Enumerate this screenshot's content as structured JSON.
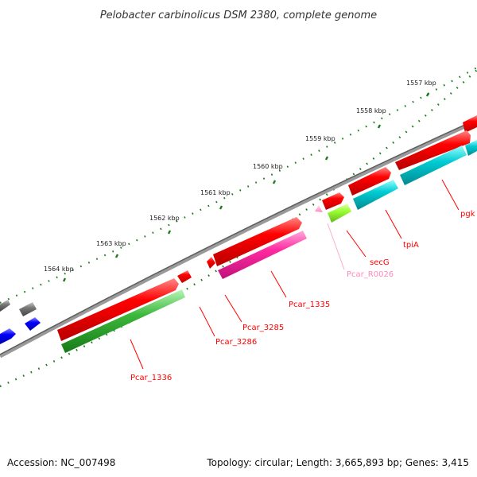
{
  "title": "Pelobacter carbinolicus DSM 2380, complete genome",
  "ticks": [
    {
      "label": "1557 kbp"
    },
    {
      "label": "1558 kbp"
    },
    {
      "label": "1559 kbp"
    },
    {
      "label": "1560 kbp"
    },
    {
      "label": "1561 kbp"
    },
    {
      "label": "1562 kbp"
    },
    {
      "label": "1563 kbp"
    },
    {
      "label": "1564 kbp"
    }
  ],
  "genes": [
    {
      "label": "pgk",
      "color": "#ff0000"
    },
    {
      "label": "tpiA",
      "color": "#ff0000"
    },
    {
      "label": "secG",
      "color": "#ff0000"
    },
    {
      "label": "Pcar_R0026",
      "color": "#ffaacc"
    },
    {
      "label": "Pcar_1335",
      "color": "#ff0000"
    },
    {
      "label": "Pcar_3285",
      "color": "#ff0000"
    },
    {
      "label": "Pcar_3286",
      "color": "#ff0000"
    },
    {
      "label": "Pcar_1336",
      "color": "#ff0000"
    }
  ],
  "colors": {
    "cds": "#ff0000",
    "rrna": "#00ccd4",
    "trna": "#ff2aa0",
    "ncrna": "#99ff33",
    "misc": "#3cb83c",
    "repeat": "#0000ff",
    "other": "#777777",
    "backbone": "#888888",
    "tick": "#1a7a1a"
  },
  "footer": {
    "accession": "Accession: NC_007498",
    "stats": "Topology: circular; Length: 3,665,893 bp; Genes: 3,415"
  }
}
